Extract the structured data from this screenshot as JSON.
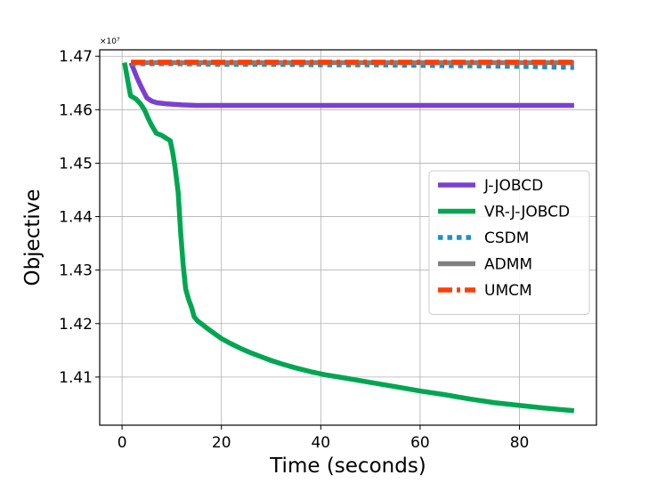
{
  "chart_data": {
    "type": "line",
    "title": "",
    "xlabel": "Time (seconds)",
    "ylabel": "Objective",
    "offset_text": "×10⁷",
    "xlim": [
      -4.5,
      95.5
    ],
    "ylim": [
      1.401,
      1.4712
    ],
    "xticks": [
      0,
      20,
      40,
      60,
      80
    ],
    "xtick_labels": [
      "0",
      "20",
      "40",
      "60",
      "80"
    ],
    "yticks": [
      1.41,
      1.42,
      1.43,
      1.44,
      1.45,
      1.46,
      1.47
    ],
    "ytick_labels": [
      "1.41",
      "1.42",
      "1.43",
      "1.44",
      "1.45",
      "1.46",
      "1.47"
    ],
    "grid": true,
    "legend_position": "center-right",
    "series": [
      {
        "name": "J-JOBCD",
        "color": "#7b40d0",
        "style": "solid",
        "x": [
          1.8,
          3,
          4,
          5,
          6,
          7,
          9,
          12,
          15,
          20,
          30,
          40,
          50,
          60,
          70,
          80,
          91
        ],
        "y": [
          1.4688,
          1.466,
          1.464,
          1.4622,
          1.4616,
          1.4613,
          1.4611,
          1.4609,
          1.4608,
          1.4608,
          1.4608,
          1.4608,
          1.4608,
          1.4608,
          1.4608,
          1.4608,
          1.4608
        ]
      },
      {
        "name": "VR-J-JOBCD",
        "color": "#00a651",
        "style": "solid",
        "x": [
          0.5,
          1.7,
          2.8,
          3.8,
          4.5,
          5.3,
          6,
          6.9,
          8,
          9,
          9.7,
          10.2,
          10.7,
          11.3,
          11.8,
          12.3,
          12.8,
          13.4,
          14,
          14.5,
          15.2,
          16.2,
          17.3,
          18.5,
          20,
          22,
          24,
          26,
          28,
          30,
          32,
          35,
          38,
          41,
          45,
          50,
          55,
          60,
          65,
          70,
          75,
          80,
          85,
          91
        ],
        "y": [
          1.4688,
          1.4626,
          1.462,
          1.461,
          1.46,
          1.4583,
          1.457,
          1.4556,
          1.4552,
          1.4546,
          1.4542,
          1.452,
          1.449,
          1.4445,
          1.437,
          1.431,
          1.4265,
          1.4245,
          1.423,
          1.4213,
          1.4205,
          1.4198,
          1.419,
          1.4182,
          1.4172,
          1.4162,
          1.4153,
          1.4145,
          1.4138,
          1.4131,
          1.4125,
          1.4117,
          1.411,
          1.4104,
          1.4098,
          1.409,
          1.4082,
          1.4074,
          1.4067,
          1.4059,
          1.4052,
          1.4047,
          1.4042,
          1.4037
        ]
      },
      {
        "name": "CSDM",
        "color": "#1f8fc8",
        "style": "dotted",
        "x": [
          1.8,
          10,
          20,
          30,
          40,
          50,
          60,
          70,
          80,
          91
        ],
        "y": [
          1.4686,
          1.4686,
          1.4685,
          1.4685,
          1.4684,
          1.4684,
          1.4683,
          1.4682,
          1.4681,
          1.4679
        ]
      },
      {
        "name": "ADMM",
        "color": "#808080",
        "style": "solid",
        "x": [
          1.8,
          10,
          20,
          30,
          40,
          50,
          60,
          70,
          80,
          91
        ],
        "y": [
          1.4688,
          1.4688,
          1.4688,
          1.4688,
          1.4688,
          1.4688,
          1.4688,
          1.4688,
          1.4688,
          1.4688
        ]
      },
      {
        "name": "UMCM",
        "color": "#ff3d00",
        "style": "dashdot",
        "x": [
          1.8,
          10,
          20,
          30,
          40,
          50,
          60,
          70,
          80,
          91
        ],
        "y": [
          1.4689,
          1.4689,
          1.4689,
          1.4689,
          1.4689,
          1.4689,
          1.4689,
          1.4689,
          1.4689,
          1.4689
        ]
      }
    ]
  }
}
